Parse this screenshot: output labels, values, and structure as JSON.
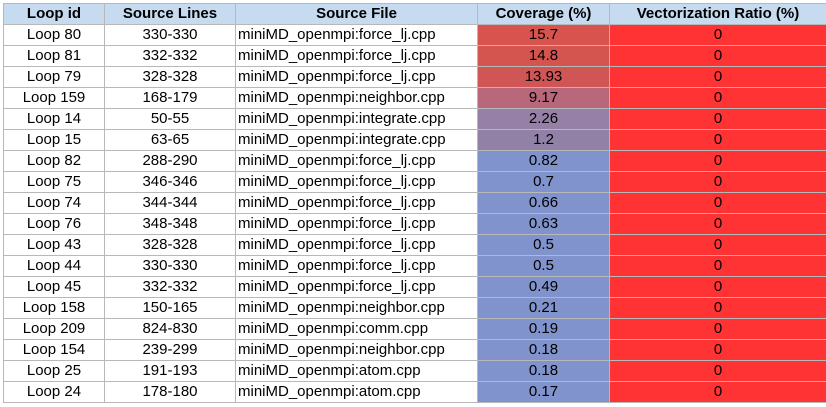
{
  "table": {
    "headers": {
      "loop_id": "Loop id",
      "source_lines": "Source Lines",
      "source_file": "Source File",
      "coverage": "Coverage (%)",
      "vectorization": "Vectorization Ratio (%)"
    },
    "colors": {
      "header_bg": "#c6daf0",
      "coverage_high": "#d9534f",
      "coverage_low": "#7f93cc",
      "vectorization_cell": "#ff3333"
    },
    "rows": [
      {
        "loop_id": "Loop 80",
        "source_lines": "330-330",
        "source_file": "miniMD_openmpi:force_lj.cpp",
        "coverage": "15.7",
        "vectorization": "0",
        "coverage_color": "#d8534e"
      },
      {
        "loop_id": "Loop 81",
        "source_lines": "332-332",
        "source_file": "miniMD_openmpi:force_lj.cpp",
        "coverage": "14.8",
        "vectorization": "0",
        "coverage_color": "#d45450"
      },
      {
        "loop_id": "Loop 79",
        "source_lines": "328-328",
        "source_file": "miniMD_openmpi:force_lj.cpp",
        "coverage": "13.93",
        "vectorization": "0",
        "coverage_color": "#d05656"
      },
      {
        "loop_id": "Loop 159",
        "source_lines": "168-179",
        "source_file": "miniMD_openmpi:neighbor.cpp",
        "coverage": "9.17",
        "vectorization": "0",
        "coverage_color": "#b9677a"
      },
      {
        "loop_id": "Loop 14",
        "source_lines": "50-55",
        "source_file": "miniMD_openmpi:integrate.cpp",
        "coverage": "2.26",
        "vectorization": "0",
        "coverage_color": "#9780a8"
      },
      {
        "loop_id": "Loop 15",
        "source_lines": "63-65",
        "source_file": "miniMD_openmpi:integrate.cpp",
        "coverage": "1.2",
        "vectorization": "0",
        "coverage_color": "#9181a6"
      },
      {
        "loop_id": "Loop 82",
        "source_lines": "288-290",
        "source_file": "miniMD_openmpi:force_lj.cpp",
        "coverage": "0.82",
        "vectorization": "0",
        "coverage_color": "#8093cc"
      },
      {
        "loop_id": "Loop 75",
        "source_lines": "346-346",
        "source_file": "miniMD_openmpi:force_lj.cpp",
        "coverage": "0.7",
        "vectorization": "0",
        "coverage_color": "#8093cc"
      },
      {
        "loop_id": "Loop 74",
        "source_lines": "344-344",
        "source_file": "miniMD_openmpi:force_lj.cpp",
        "coverage": "0.66",
        "vectorization": "0",
        "coverage_color": "#8093cc"
      },
      {
        "loop_id": "Loop 76",
        "source_lines": "348-348",
        "source_file": "miniMD_openmpi:force_lj.cpp",
        "coverage": "0.63",
        "vectorization": "0",
        "coverage_color": "#8093cc"
      },
      {
        "loop_id": "Loop 43",
        "source_lines": "328-328",
        "source_file": "miniMD_openmpi:force_lj.cpp",
        "coverage": "0.5",
        "vectorization": "0",
        "coverage_color": "#8093cc"
      },
      {
        "loop_id": "Loop 44",
        "source_lines": "330-330",
        "source_file": "miniMD_openmpi:force_lj.cpp",
        "coverage": "0.5",
        "vectorization": "0",
        "coverage_color": "#8093cc"
      },
      {
        "loop_id": "Loop 45",
        "source_lines": "332-332",
        "source_file": "miniMD_openmpi:force_lj.cpp",
        "coverage": "0.49",
        "vectorization": "0",
        "coverage_color": "#8093cc"
      },
      {
        "loop_id": "Loop 158",
        "source_lines": "150-165",
        "source_file": "miniMD_openmpi:neighbor.cpp",
        "coverage": "0.21",
        "vectorization": "0",
        "coverage_color": "#8093cc"
      },
      {
        "loop_id": "Loop 209",
        "source_lines": "824-830",
        "source_file": "miniMD_openmpi:comm.cpp",
        "coverage": "0.19",
        "vectorization": "0",
        "coverage_color": "#8093cc"
      },
      {
        "loop_id": "Loop 154",
        "source_lines": "239-299",
        "source_file": "miniMD_openmpi:neighbor.cpp",
        "coverage": "0.18",
        "vectorization": "0",
        "coverage_color": "#8093cc"
      },
      {
        "loop_id": "Loop 25",
        "source_lines": "191-193",
        "source_file": "miniMD_openmpi:atom.cpp",
        "coverage": "0.18",
        "vectorization": "0",
        "coverage_color": "#8093cc"
      },
      {
        "loop_id": "Loop 24",
        "source_lines": "178-180",
        "source_file": "miniMD_openmpi:atom.cpp",
        "coverage": "0.17",
        "vectorization": "0",
        "coverage_color": "#8093cc"
      }
    ]
  }
}
